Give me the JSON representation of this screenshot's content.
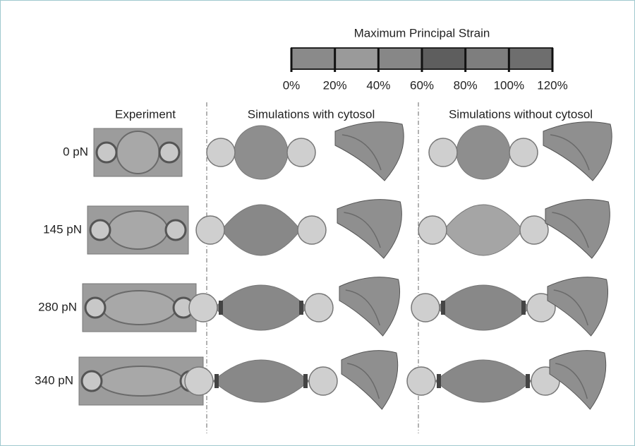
{
  "colorbar": {
    "title": "Maximum Principal Strain",
    "ticks": [
      "0%",
      "20%",
      "40%",
      "60%",
      "80%",
      "100%",
      "120%"
    ]
  },
  "columns": [
    "Experiment",
    "Simulations with cytosol",
    "Simulations without cytosol"
  ],
  "rows": [
    "0 pN",
    "145 pN",
    "280 pN",
    "340 pN"
  ]
}
